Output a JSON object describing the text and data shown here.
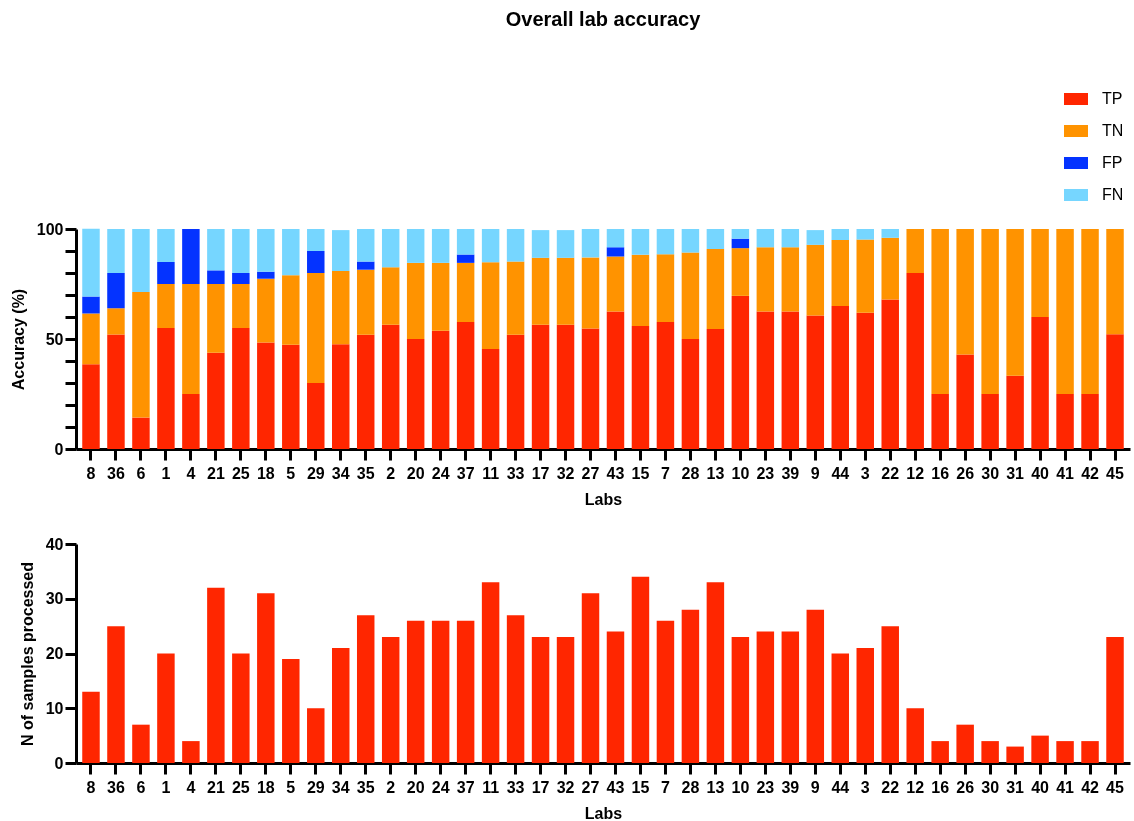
{
  "chart_data": [
    {
      "type": "bar",
      "title": "Overall lab accuracy",
      "xlabel": "Labs",
      "ylabel": "Accuracy (%)",
      "categories": [
        "8",
        "36",
        "6",
        "1",
        "4",
        "21",
        "25",
        "18",
        "5",
        "29",
        "34",
        "35",
        "2",
        "20",
        "24",
        "37",
        "11",
        "33",
        "17",
        "32",
        "27",
        "43",
        "15",
        "7",
        "28",
        "13",
        "10",
        "23",
        "39",
        "9",
        "44",
        "3",
        "22",
        "12",
        "16",
        "26",
        "30",
        "31",
        "40",
        "41",
        "42",
        "45"
      ],
      "stacked": true,
      "legend": "top right",
      "grid": false,
      "ylim": [
        0,
        100
      ],
      "yticks": [
        0,
        {
          "value": 10,
          "label": null
        },
        {
          "value": 20,
          "label": null
        },
        {
          "value": 30,
          "label": null
        },
        {
          "value": 40,
          "label": null
        },
        50,
        {
          "value": 60,
          "label": null
        },
        {
          "value": 70,
          "label": null
        },
        {
          "value": 80,
          "label": null
        },
        {
          "value": 90,
          "label": null
        },
        100
      ],
      "series": [
        {
          "name": "TP",
          "color": "#ff2600",
          "values": [
            38.5,
            52,
            14.3,
            55,
            25,
            43.8,
            55,
            48.4,
            47.4,
            30,
            47.6,
            51.9,
            56.5,
            50,
            53.8,
            57.7,
            45.5,
            51.9,
            56.5,
            56.5,
            54.8,
            62.5,
            55.9,
            57.7,
            50,
            54.5,
            69.6,
            62.5,
            62.5,
            60.7,
            65,
            61.9,
            68,
            80,
            25,
            42.9,
            25,
            33.3,
            60,
            25,
            25,
            52.2
          ]
        },
        {
          "name": "TN",
          "color": "#ff9300",
          "values": [
            23.1,
            12,
            57.1,
            20,
            50,
            31.2,
            20,
            29.0,
            31.6,
            50,
            33.3,
            29.6,
            26.1,
            34.6,
            30.8,
            26.9,
            39.4,
            33.3,
            30.4,
            30.4,
            32.3,
            25,
            32.4,
            30.8,
            39.3,
            36.4,
            21.7,
            29.2,
            29.2,
            32.1,
            30,
            33.3,
            28,
            20,
            75,
            57.1,
            75,
            66.7,
            40,
            75,
            75,
            47.8
          ]
        },
        {
          "name": "FP",
          "color": "#0433ff",
          "values": [
            7.7,
            16,
            null,
            10,
            25,
            6.2,
            5,
            3.2,
            null,
            10,
            null,
            3.7,
            null,
            null,
            null,
            3.8,
            null,
            null,
            null,
            null,
            null,
            4.2,
            null,
            null,
            null,
            null,
            4.3,
            null,
            null,
            null,
            null,
            null,
            null,
            null,
            null,
            null,
            null,
            null,
            null,
            null,
            null,
            null
          ]
        },
        {
          "name": "FN",
          "color": "#76d6ff",
          "values": [
            30.8,
            20,
            28.6,
            15,
            null,
            18.8,
            20,
            19.4,
            21.0,
            10,
            18.6,
            14.8,
            17.4,
            15.4,
            15.4,
            11.6,
            15.1,
            14.8,
            12.6,
            12.6,
            12.9,
            8.3,
            11.7,
            11.5,
            10.7,
            9.1,
            4.4,
            8.3,
            8.3,
            6.7,
            5,
            4.8,
            4,
            null,
            null,
            null,
            null,
            null,
            null,
            null,
            null,
            null
          ]
        }
      ]
    },
    {
      "type": "bar",
      "xlabel": "Labs",
      "ylabel": "N of samples processed",
      "categories": [
        "8",
        "36",
        "6",
        "1",
        "4",
        "21",
        "25",
        "18",
        "5",
        "29",
        "34",
        "35",
        "2",
        "20",
        "24",
        "37",
        "11",
        "33",
        "17",
        "32",
        "27",
        "43",
        "15",
        "7",
        "28",
        "13",
        "10",
        "23",
        "39",
        "9",
        "44",
        "3",
        "22",
        "12",
        "16",
        "26",
        "30",
        "31",
        "40",
        "41",
        "42",
        "45"
      ],
      "grid": false,
      "ylim": [
        0,
        40
      ],
      "yticks": [
        0,
        10,
        20,
        30,
        40
      ],
      "color": "#ff2600",
      "values": [
        13,
        25,
        7,
        20,
        4,
        32,
        20,
        31,
        19,
        10,
        21,
        27,
        23,
        26,
        26,
        26,
        33,
        27,
        23,
        23,
        31,
        24,
        34,
        26,
        28,
        33,
        23,
        24,
        24,
        28,
        20,
        21,
        25,
        10,
        4,
        7,
        4,
        3,
        5,
        4,
        4,
        23
      ]
    }
  ]
}
